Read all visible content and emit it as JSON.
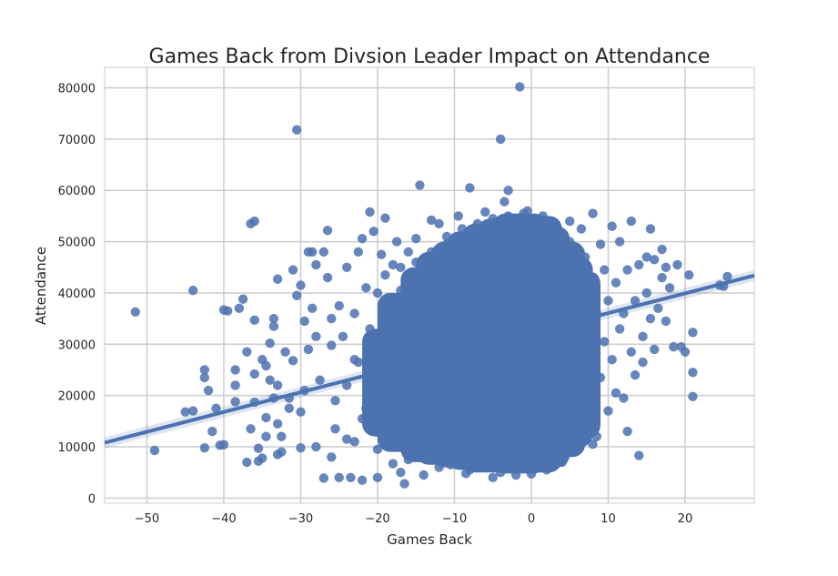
{
  "chart_data": {
    "type": "scatter",
    "title": "Games Back from Divsion Leader Impact on Attendance",
    "xlabel": "Games Back",
    "ylabel": "Attendance",
    "xlim": [
      -55.5,
      29
    ],
    "ylim": [
      -1000,
      84000
    ],
    "xticks": [
      -50,
      -40,
      -30,
      -20,
      -10,
      0,
      10,
      20
    ],
    "yticks": [
      0,
      10000,
      20000,
      30000,
      40000,
      50000,
      60000,
      70000,
      80000
    ],
    "grid": true,
    "color": "#4c72b0",
    "regression": {
      "x": [
        -55.5,
        29
      ],
      "y": [
        10800,
        43400
      ],
      "ci_band": true
    },
    "series": [
      {
        "values": [
          [
            -51.5,
            36300
          ],
          [
            -49,
            9300
          ],
          [
            -44,
            40500
          ],
          [
            -44,
            17000
          ],
          [
            -42.5,
            25000
          ],
          [
            -42.5,
            23500
          ],
          [
            -42.5,
            9800
          ],
          [
            -42,
            21000
          ],
          [
            -41.5,
            13000
          ],
          [
            -41,
            17500
          ],
          [
            -40.5,
            10300
          ],
          [
            -40,
            36700
          ],
          [
            -39.5,
            36500
          ],
          [
            -38.5,
            22000
          ],
          [
            -38.5,
            18800
          ],
          [
            -38.5,
            25000
          ],
          [
            -38,
            37000
          ],
          [
            -37.5,
            38800
          ],
          [
            -37,
            28500
          ],
          [
            -36.5,
            13500
          ],
          [
            -36.5,
            53500
          ],
          [
            -36,
            54000
          ],
          [
            -36,
            34700
          ],
          [
            -36,
            24200
          ],
          [
            -36,
            18700
          ],
          [
            -35.5,
            9700
          ],
          [
            -35.5,
            7200
          ],
          [
            -35,
            7800
          ],
          [
            -35,
            27000
          ],
          [
            -34.5,
            12000
          ],
          [
            -34.5,
            15700
          ],
          [
            -34.5,
            25800
          ],
          [
            -34,
            30200
          ],
          [
            -34,
            23000
          ],
          [
            -33.5,
            35000
          ],
          [
            -33.5,
            33500
          ],
          [
            -33.5,
            19500
          ],
          [
            -33,
            42700
          ],
          [
            -33,
            22000
          ],
          [
            -33,
            14500
          ],
          [
            -32.5,
            9000
          ],
          [
            -32.5,
            12000
          ],
          [
            -32,
            28500
          ],
          [
            -31.5,
            17500
          ],
          [
            -31.5,
            19500
          ],
          [
            -31,
            44500
          ],
          [
            -31,
            26800
          ],
          [
            -30.5,
            71800
          ],
          [
            -30.5,
            39500
          ],
          [
            -30,
            41500
          ],
          [
            -30,
            16800
          ],
          [
            -30,
            9800
          ],
          [
            -29.5,
            34500
          ],
          [
            -29.5,
            21000
          ],
          [
            -29,
            48000
          ],
          [
            -29,
            29000
          ],
          [
            -28.5,
            48000
          ],
          [
            -28.5,
            37000
          ],
          [
            -28,
            45500
          ],
          [
            -28,
            31500
          ],
          [
            -27.5,
            23000
          ],
          [
            -27,
            48000
          ],
          [
            -27,
            3900
          ],
          [
            -26.5,
            52200
          ],
          [
            -26.5,
            43000
          ],
          [
            -26,
            35000
          ],
          [
            -26,
            29800
          ],
          [
            -25.5,
            19000
          ],
          [
            -25.5,
            13500
          ],
          [
            -25,
            4000
          ],
          [
            -25,
            37500
          ],
          [
            -24.5,
            31500
          ],
          [
            -24,
            45000
          ],
          [
            -24,
            22000
          ],
          [
            -23.5,
            4000
          ],
          [
            -23,
            36000
          ],
          [
            -23,
            11000
          ],
          [
            -22.5,
            48000
          ],
          [
            -22.5,
            26500
          ],
          [
            -22,
            3500
          ],
          [
            -22,
            50600
          ],
          [
            -21.5,
            41000
          ],
          [
            -21.5,
            17500
          ],
          [
            -21,
            55800
          ],
          [
            -21,
            33000
          ],
          [
            -20.5,
            52000
          ],
          [
            -20.5,
            14800
          ],
          [
            -20,
            40000
          ],
          [
            -20,
            4000
          ],
          [
            -19.5,
            47500
          ],
          [
            -19.5,
            28500
          ],
          [
            -19,
            22000
          ],
          [
            -19,
            54600
          ],
          [
            -18.5,
            10500
          ],
          [
            -18.5,
            35000
          ],
          [
            -18,
            6700
          ],
          [
            -18,
            45500
          ],
          [
            -17.5,
            50000
          ],
          [
            -17.5,
            26000
          ],
          [
            -17,
            5000
          ],
          [
            -17,
            40500
          ],
          [
            -16.5,
            2800
          ],
          [
            -16.5,
            33000
          ],
          [
            -16,
            48000
          ],
          [
            -16,
            20000
          ],
          [
            -15.5,
            12000
          ],
          [
            -15.5,
            42000
          ],
          [
            -15,
            50600
          ],
          [
            -15,
            37000
          ],
          [
            -14.5,
            61000
          ],
          [
            -14.5,
            29000
          ],
          [
            -14,
            24500
          ],
          [
            -14,
            4500
          ],
          [
            -13.5,
            44000
          ],
          [
            -13.5,
            16500
          ],
          [
            -13,
            54200
          ],
          [
            -13,
            34000
          ],
          [
            -12.5,
            8500
          ],
          [
            -12.5,
            39000
          ],
          [
            -12,
            53500
          ],
          [
            -12,
            22000
          ],
          [
            -11.5,
            46000
          ],
          [
            -11.5,
            13000
          ],
          [
            -11,
            27500
          ],
          [
            -11,
            49500
          ],
          [
            -10.5,
            6500
          ],
          [
            -10.5,
            41000
          ],
          [
            -10,
            36000
          ],
          [
            -10,
            18500
          ],
          [
            -9.5,
            55000
          ],
          [
            -9.5,
            30500
          ],
          [
            -9,
            11500
          ],
          [
            -9,
            44500
          ],
          [
            -8.5,
            4800
          ],
          [
            -8.5,
            25000
          ],
          [
            -8,
            60500
          ],
          [
            -8,
            38000
          ],
          [
            -7.5,
            16000
          ],
          [
            -7.5,
            51000
          ],
          [
            -7,
            33000
          ],
          [
            -7,
            9000
          ],
          [
            -6.5,
            45500
          ],
          [
            -6.5,
            21000
          ],
          [
            -6,
            55800
          ],
          [
            -6,
            28000
          ],
          [
            -5.5,
            14000
          ],
          [
            -5.5,
            42000
          ],
          [
            -5,
            4000
          ],
          [
            -5,
            36000
          ],
          [
            -4.5,
            50500
          ],
          [
            -4.5,
            19000
          ],
          [
            -4,
            70000
          ],
          [
            -4,
            31500
          ],
          [
            -3.5,
            57800
          ],
          [
            -3.5,
            12000
          ],
          [
            -3,
            60000
          ],
          [
            -3,
            44000
          ],
          [
            -3,
            24500
          ],
          [
            -2.5,
            6000
          ],
          [
            -2.5,
            38500
          ],
          [
            -2,
            53000
          ],
          [
            -2,
            16500
          ],
          [
            -1.5,
            80200
          ],
          [
            -1.5,
            30000
          ],
          [
            -1,
            47500
          ],
          [
            -1,
            10000
          ],
          [
            -0.5,
            56000
          ],
          [
            -0.5,
            35000
          ],
          [
            0,
            4700
          ],
          [
            0,
            22000
          ],
          [
            0.5,
            41000
          ],
          [
            0.5,
            51500
          ],
          [
            1,
            13000
          ],
          [
            1,
            28000
          ],
          [
            1.5,
            55000
          ],
          [
            1.5,
            37500
          ],
          [
            2,
            8500
          ],
          [
            2,
            46000
          ],
          [
            2.5,
            20000
          ],
          [
            2.5,
            32500
          ],
          [
            3,
            53000
          ],
          [
            3,
            15000
          ],
          [
            3.5,
            42500
          ],
          [
            3.5,
            25500
          ],
          [
            4,
            7000
          ],
          [
            4,
            49000
          ],
          [
            4.5,
            36000
          ],
          [
            4.5,
            18000
          ],
          [
            5,
            54000
          ],
          [
            5,
            29000
          ],
          [
            5.5,
            10500
          ],
          [
            5.5,
            44000
          ],
          [
            6,
            22500
          ],
          [
            6,
            39500
          ],
          [
            6.5,
            52500
          ],
          [
            6.5,
            14500
          ],
          [
            7,
            33000
          ],
          [
            7,
            47000
          ],
          [
            7.5,
            19000
          ],
          [
            7.5,
            26500
          ],
          [
            8,
            55500
          ],
          [
            8,
            41000
          ],
          [
            8.5,
            12000
          ],
          [
            8.5,
            36000
          ],
          [
            9,
            49500
          ],
          [
            9,
            23500
          ],
          [
            9.5,
            30500
          ],
          [
            9.5,
            44500
          ],
          [
            10,
            17000
          ],
          [
            10,
            38500
          ],
          [
            10.5,
            53000
          ],
          [
            10.5,
            27000
          ],
          [
            11,
            42000
          ],
          [
            11,
            20500
          ],
          [
            11.5,
            33000
          ],
          [
            11.5,
            50000
          ],
          [
            12,
            19500
          ],
          [
            12,
            36000
          ],
          [
            12.5,
            44500
          ],
          [
            12.5,
            13000
          ],
          [
            13,
            28500
          ],
          [
            13,
            54000
          ],
          [
            13.5,
            38500
          ],
          [
            13.5,
            24000
          ],
          [
            14,
            8300
          ],
          [
            14,
            45500
          ],
          [
            14.5,
            31500
          ],
          [
            14.5,
            26500
          ],
          [
            15,
            47000
          ],
          [
            15,
            40000
          ],
          [
            15.5,
            52500
          ],
          [
            15.5,
            35000
          ],
          [
            16,
            29000
          ],
          [
            16,
            46500
          ],
          [
            16.5,
            37000
          ],
          [
            17,
            43000
          ],
          [
            17,
            48500
          ],
          [
            17.5,
            34500
          ],
          [
            17.5,
            45000
          ],
          [
            18,
            41000
          ],
          [
            18.5,
            29500
          ],
          [
            19,
            45500
          ],
          [
            19.5,
            29500
          ],
          [
            20,
            28500
          ],
          [
            20.5,
            43500
          ],
          [
            21,
            32300
          ],
          [
            21,
            24500
          ],
          [
            21,
            19800
          ],
          [
            24.5,
            41500
          ],
          [
            25,
            41300
          ],
          [
            25.5,
            43200
          ],
          [
            -45,
            16800
          ],
          [
            -40,
            10400
          ],
          [
            -37,
            7000
          ],
          [
            -33,
            8500
          ],
          [
            -28,
            10000
          ],
          [
            -26,
            8000
          ],
          [
            -24,
            11500
          ],
          [
            -22,
            15500
          ],
          [
            -20,
            9500
          ],
          [
            -18,
            12500
          ],
          [
            -16,
            7500
          ],
          [
            -14,
            9500
          ],
          [
            -12,
            6000
          ],
          [
            -10,
            8500
          ],
          [
            -8,
            5500
          ],
          [
            -6,
            7000
          ],
          [
            -4,
            5000
          ],
          [
            -2,
            4500
          ],
          [
            0,
            6000
          ],
          [
            2,
            5500
          ],
          [
            4,
            9000
          ],
          [
            6,
            11000
          ],
          [
            8,
            10500
          ],
          [
            -23,
            27000
          ],
          [
            -21,
            31000
          ],
          [
            -19,
            43500
          ],
          [
            -17,
            45000
          ],
          [
            -15,
            46000
          ],
          [
            -13,
            48000
          ],
          [
            -11,
            51000
          ],
          [
            -9,
            52500
          ],
          [
            -7,
            53500
          ],
          [
            -5,
            54500
          ],
          [
            -3,
            55000
          ],
          [
            -1,
            55500
          ],
          [
            1,
            54000
          ],
          [
            3,
            52000
          ],
          [
            5,
            50000
          ]
        ]
      }
    ]
  }
}
